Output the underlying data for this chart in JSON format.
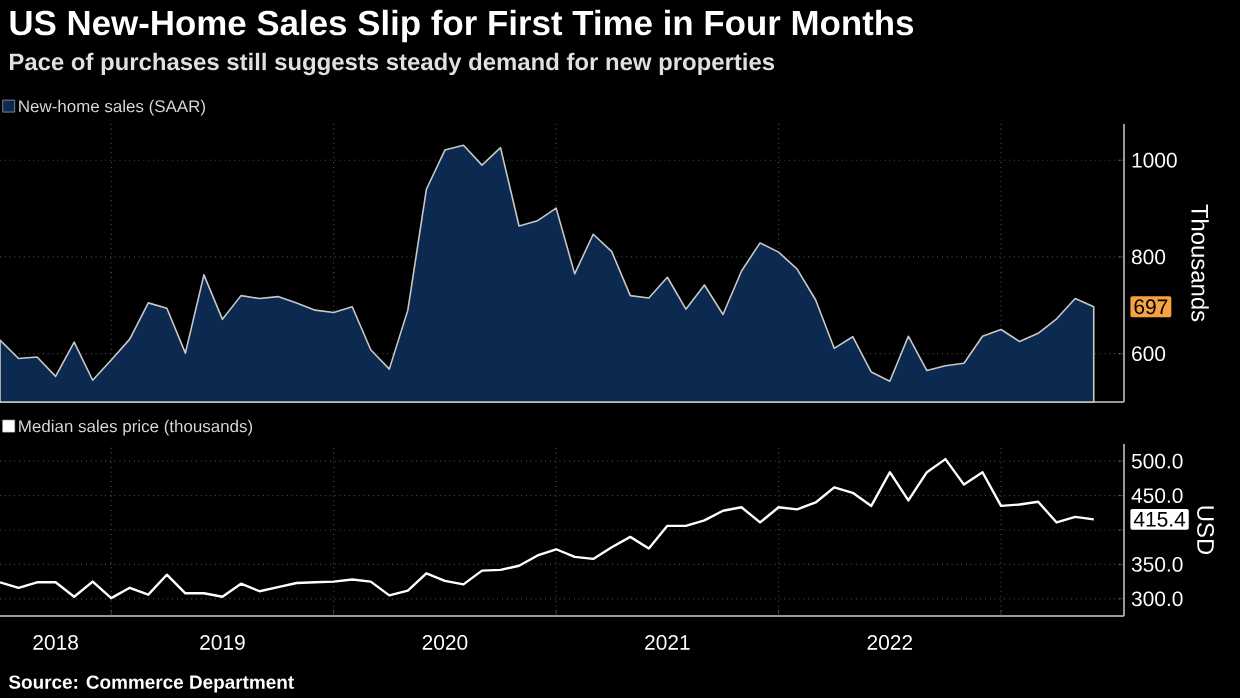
{
  "chart_data": [
    {
      "type": "area",
      "title": "US New-Home Sales Slip for First Time in Four Months",
      "subtitle": "Pace of purchases still suggests steady demand for new properties",
      "ylabel": "Thousands",
      "x": [
        "2018-07",
        "2018-08",
        "2018-09",
        "2018-10",
        "2018-11",
        "2018-12",
        "2019-01",
        "2019-02",
        "2019-03",
        "2019-04",
        "2019-05",
        "2019-06",
        "2019-07",
        "2019-08",
        "2019-09",
        "2019-10",
        "2019-11",
        "2019-12",
        "2020-01",
        "2020-02",
        "2020-03",
        "2020-04",
        "2020-05",
        "2020-06",
        "2020-07",
        "2020-08",
        "2020-09",
        "2020-10",
        "2020-11",
        "2020-12",
        "2021-01",
        "2021-02",
        "2021-03",
        "2021-04",
        "2021-05",
        "2021-06",
        "2021-07",
        "2021-08",
        "2021-09",
        "2021-10",
        "2021-11",
        "2021-12",
        "2022-01",
        "2022-02",
        "2022-03",
        "2022-04",
        "2022-05",
        "2022-06",
        "2022-07",
        "2022-08",
        "2022-09",
        "2022-10",
        "2022-11",
        "2022-12",
        "2023-01",
        "2023-02",
        "2023-03",
        "2023-04",
        "2023-05",
        "2023-06"
      ],
      "series": [
        {
          "name": "New-home sales (SAAR)",
          "color": "#0c2a4f",
          "values": [
            628,
            590,
            593,
            553,
            624,
            545,
            587,
            630,
            705,
            694,
            601,
            763,
            671,
            720,
            714,
            718,
            705,
            690,
            685,
            697,
            608,
            568,
            690,
            940,
            1021,
            1031,
            990,
            1026,
            864,
            875,
            901,
            765,
            847,
            811,
            720,
            715,
            758,
            692,
            742,
            681,
            771,
            829,
            810,
            775,
            711,
            611,
            635,
            562,
            543,
            636,
            565,
            575,
            580,
            636,
            650,
            625,
            642,
            672,
            714,
            697
          ]
        }
      ],
      "annotations": [
        {
          "text": "697",
          "x": "2023-06",
          "y": 697
        }
      ],
      "xlim": [
        "2018-07",
        "2023-07-20"
      ],
      "ylim": [
        500,
        1075
      ],
      "xticks": [
        {
          "value": "2019-01",
          "label": null
        },
        {
          "value": "2020-01",
          "label": null
        },
        {
          "value": "2021-01",
          "label": null
        },
        {
          "value": "2022-01",
          "label": null
        },
        {
          "value": "2023-01",
          "label": null
        }
      ],
      "yticks": [
        600,
        800,
        1000
      ],
      "grid": true,
      "legend": "top left",
      "tick_labels": "y"
    },
    {
      "type": "line",
      "ylabel": "USD",
      "x": [
        "2018-07",
        "2018-08",
        "2018-09",
        "2018-10",
        "2018-11",
        "2018-12",
        "2019-01",
        "2019-02",
        "2019-03",
        "2019-04",
        "2019-05",
        "2019-06",
        "2019-07",
        "2019-08",
        "2019-09",
        "2019-10",
        "2019-11",
        "2019-12",
        "2020-01",
        "2020-02",
        "2020-03",
        "2020-04",
        "2020-05",
        "2020-06",
        "2020-07",
        "2020-08",
        "2020-09",
        "2020-10",
        "2020-11",
        "2020-12",
        "2021-01",
        "2021-02",
        "2021-03",
        "2021-04",
        "2021-05",
        "2021-06",
        "2021-07",
        "2021-08",
        "2021-09",
        "2021-10",
        "2021-11",
        "2021-12",
        "2022-01",
        "2022-02",
        "2022-03",
        "2022-04",
        "2022-05",
        "2022-06",
        "2022-07",
        "2022-08",
        "2022-09",
        "2022-10",
        "2022-11",
        "2022-12",
        "2023-01",
        "2023-02",
        "2023-03",
        "2023-04",
        "2023-05",
        "2023-06"
      ],
      "series": [
        {
          "name": "Median sales price (thousands)",
          "color": "#ffffff",
          "values": [
            324,
            316,
            324,
            324,
            303,
            325,
            301,
            316,
            306,
            335,
            308,
            308,
            303,
            322,
            311,
            317,
            323,
            324,
            325,
            328,
            325,
            305,
            312,
            337,
            326,
            321,
            341,
            342,
            348,
            363,
            372,
            361,
            358,
            375,
            390,
            373,
            406,
            406,
            414,
            428,
            433,
            411,
            433,
            430,
            440,
            462,
            454,
            435,
            484,
            443,
            484,
            503,
            466,
            484,
            435,
            437,
            441,
            411,
            419,
            415.4
          ]
        }
      ],
      "annotations": [
        {
          "text": "415.4",
          "x": "2023-06",
          "y": 415.4
        },
        "Source: Commerce Department"
      ],
      "xlim": [
        "2018-07",
        "2023-07-20"
      ],
      "ylim": [
        275,
        525
      ],
      "xticks": [
        {
          "value": "2019-01",
          "label": null
        },
        {
          "value": "2020-01",
          "label": null
        },
        {
          "value": "2021-01",
          "label": null
        },
        {
          "value": "2022-01",
          "label": null
        },
        {
          "value": "2023-01",
          "label": null
        },
        {
          "value": "2018-10",
          "label": "2018"
        },
        {
          "value": "2019-07",
          "label": "2019"
        },
        {
          "value": "2020-07",
          "label": "2020"
        },
        {
          "value": "2021-07",
          "label": "2021"
        },
        {
          "value": "2022-07",
          "label": "2022"
        }
      ],
      "yticks": [
        {
          "value": 300,
          "label": "300.0"
        },
        {
          "value": 350,
          "label": "350.0"
        },
        {
          "value": 400,
          "label": null
        },
        {
          "value": 450,
          "label": "450.0"
        },
        {
          "value": 500,
          "label": "500.0"
        }
      ],
      "grid": true,
      "legend": "top left"
    }
  ]
}
